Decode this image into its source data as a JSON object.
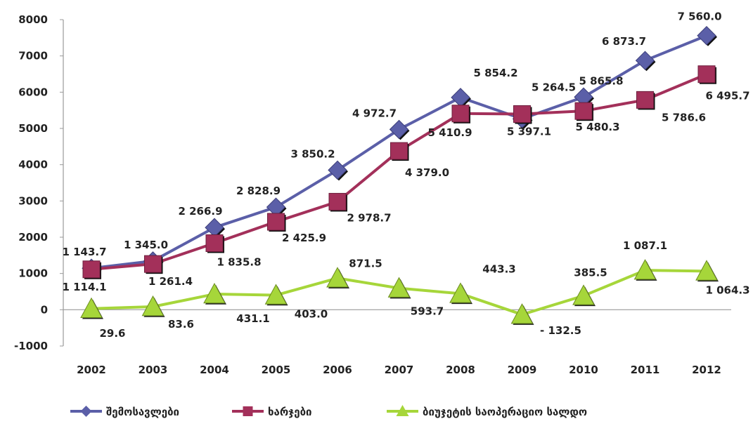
{
  "chart_data": {
    "type": "line",
    "title": "",
    "xlabel": "",
    "ylabel": "",
    "categories": [
      "2002",
      "2003",
      "2004",
      "2005",
      "2006",
      "2007",
      "2008",
      "2009",
      "2010",
      "2011",
      "2012"
    ],
    "ylim": [
      -1000,
      8000
    ],
    "yticks": [
      -1000,
      0,
      1000,
      2000,
      3000,
      4000,
      5000,
      6000,
      7000,
      8000
    ],
    "grid": false,
    "legend_position": "bottom",
    "series": [
      {
        "name": "შემოსავლები",
        "color": "#5b5fa8",
        "marker": "diamond",
        "values": [
          1143.7,
          1345.0,
          2266.9,
          2828.9,
          3850.2,
          4972.7,
          5854.2,
          5264.5,
          5865.8,
          6873.7,
          7560.0
        ],
        "labels": [
          "1 143.7",
          "1 345.0",
          "2 266.9",
          "2 828.9",
          "3 850.2",
          "4 972.7",
          "5 854.2",
          "5 264.5",
          "5 865.8",
          "6 873.7",
          "7 560.0"
        ]
      },
      {
        "name": "ხარჯები",
        "color": "#a3305a",
        "marker": "square",
        "values": [
          1114.1,
          1261.4,
          1835.8,
          2425.9,
          2978.7,
          4379.0,
          5410.9,
          5397.1,
          5480.3,
          5786.6,
          6495.7
        ],
        "labels": [
          "1 114.1",
          "1 261.4",
          "1 835.8",
          "2 425.9",
          "2 978.7",
          "4 379.0",
          "5 410.9",
          "5 397.1",
          "5 480.3",
          "5 786.6",
          "6 495.7"
        ]
      },
      {
        "name": "ბიუჯეტის საოპერაციო სალდო",
        "color": "#a6d63a",
        "marker": "triangle",
        "values": [
          29.6,
          83.6,
          431.1,
          403.0,
          871.5,
          593.7,
          443.3,
          -132.5,
          385.5,
          1087.1,
          1064.3
        ],
        "labels": [
          "29.6",
          "83.6",
          "431.1",
          "403.0",
          "871.5",
          "593.7",
          "443.3",
          "- 132.5",
          "385.5",
          "1 087.1",
          "1 064.3"
        ]
      }
    ]
  }
}
